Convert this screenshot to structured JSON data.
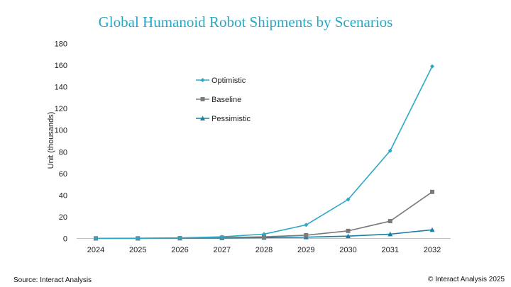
{
  "chart_data": {
    "type": "line",
    "title": "Global Humanoid Robot Shipments by Scenarios",
    "xlabel": "",
    "ylabel": "Unit (thousands)",
    "x": [
      "2024",
      "2025",
      "2026",
      "2027",
      "2028",
      "2029",
      "2030",
      "2031",
      "2032"
    ],
    "ylim": [
      0,
      180
    ],
    "yticks": [
      0,
      20,
      40,
      60,
      80,
      100,
      120,
      140,
      160,
      180
    ],
    "grid": false,
    "legend_position": "upper-center",
    "series": [
      {
        "name": "Optimistic",
        "color": "#2aa8c6",
        "marker": "diamond",
        "values": [
          0.1,
          0.2,
          0.5,
          1.5,
          4,
          12.5,
          36,
          81,
          159
        ]
      },
      {
        "name": "Baseline",
        "color": "#7b7b7b",
        "marker": "square",
        "values": [
          0.1,
          0.1,
          0.3,
          0.8,
          1.5,
          3,
          7,
          16,
          43
        ]
      },
      {
        "name": "Pessimistic",
        "color": "#1a7fa3",
        "marker": "triangle",
        "values": [
          0.1,
          0.1,
          0.2,
          0.4,
          0.8,
          1.2,
          2.2,
          4,
          8
        ]
      }
    ]
  },
  "footer": {
    "source": "Source: Interact Analysis",
    "copyright": "© Interact Analysis 2025"
  }
}
